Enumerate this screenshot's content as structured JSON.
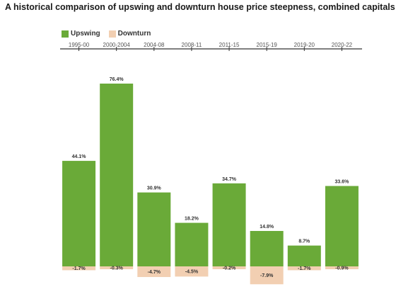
{
  "title": "A historical comparison of upswing and downturn house price steepness, combined capitals",
  "legend": {
    "upswing_label": "Upswing",
    "downturn_label": "Downturn"
  },
  "colors": {
    "upswing": "#6aaa38",
    "downturn": "#f2cfb2",
    "axis": "#333333",
    "label": "#333333"
  },
  "chart_data": {
    "type": "bar",
    "title": "A historical comparison of upswing and downturn house price steepness, combined capitals",
    "categories": [
      "1995-00",
      "2000-2004",
      "2004-08",
      "2008-11",
      "2011-15",
      "2015-19",
      "2019-20",
      "2020-22"
    ],
    "series": [
      {
        "name": "Upswing",
        "values": [
          44.1,
          76.4,
          30.9,
          18.2,
          34.7,
          14.8,
          8.7,
          33.6
        ],
        "labels": [
          "44.1%",
          "76.4%",
          "30.9%",
          "18.2%",
          "34.7%",
          "14.8%",
          "8.7%",
          "33.6%"
        ]
      },
      {
        "name": "Downturn",
        "values": [
          -1.7,
          -0.3,
          -4.7,
          -4.5,
          -0.2,
          -7.9,
          -1.7,
          -0.9
        ],
        "labels": [
          "-1.7%",
          "-0.3%",
          "-4.7%",
          "-4.5%",
          "-0.2%",
          "-7.9%",
          "-1.7%",
          "-0.9%"
        ]
      }
    ],
    "x_axis_position": "top",
    "legend_position": "top-left",
    "grid": false
  }
}
